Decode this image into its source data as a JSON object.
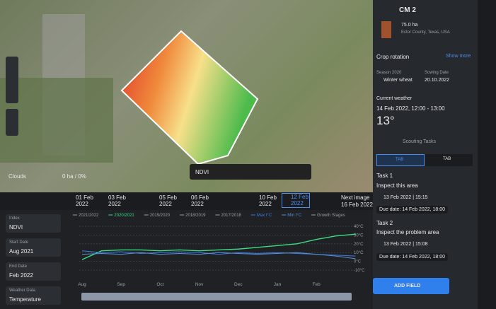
{
  "map": {
    "clouds": "Clouds",
    "clouds_value": "0 ha / 0%",
    "index": "NDVI"
  },
  "timeline": {
    "dates": [
      "01 Feb 2022",
      "03 Feb 2022",
      "05 Feb 2022",
      "06 Feb 2022",
      "10 Feb 2022",
      "12 Feb 2022"
    ],
    "next_label": "Next image",
    "next_date": "16 Feb 2022"
  },
  "controls": [
    {
      "label": "Index",
      "value": "NDVI"
    },
    {
      "label": "Start Date",
      "value": "Aug 2021"
    },
    {
      "label": "End Date",
      "value": "Feb 2022"
    },
    {
      "label": "Weather Data",
      "value": "Temperature"
    }
  ],
  "panel": {
    "title": "CM 2",
    "area": "75.0 ha",
    "location": "Ector County, Texas, USA",
    "crop_rotation": "Crop rotation",
    "show_more": "Show more",
    "season": "Season 2020",
    "crop": "Winter wheat",
    "sowing_label": "Sowing Date",
    "sowing_date": "20.10.2022",
    "weather_title": "Current weather",
    "weather_time": "14 Feb 2022, 12:00 - 13:00",
    "temperature": "13°",
    "scouting": "Scouting Tasks",
    "tabs": [
      "TAB",
      "TAB"
    ],
    "tasks": [
      {
        "title": "Task 1",
        "desc": "Inspect this area",
        "time": "13 Feb 2022 | 15:15",
        "due": "Due date: 14 Feb 2022, 18:00"
      },
      {
        "title": "Task 2",
        "desc": "Inspect the problem area",
        "time": "13 Feb 2022 | 15:08",
        "due": "Due date: 14 Feb 2022, 18:00"
      }
    ],
    "add_field": "ADD FIELD"
  },
  "chart_data": {
    "type": "line",
    "categories": [
      "Aug",
      null,
      "Sep",
      null,
      "Oct",
      null,
      "Nov",
      null,
      "Dec",
      null,
      "Jan",
      null,
      "Feb",
      null,
      null
    ],
    "series": [
      {
        "name": "2020/2021",
        "color": "#3ddc84",
        "values": [
          2,
          12,
          13,
          13,
          12,
          13,
          12,
          13,
          14,
          16,
          18,
          20,
          25,
          29,
          31
        ]
      },
      {
        "name": "Max t°C",
        "color": "#3d7be0",
        "values": [
          12,
          10,
          11,
          9,
          10,
          11,
          10,
          8,
          10,
          9,
          10,
          9,
          8,
          7,
          6
        ]
      },
      {
        "name": "Min t°C",
        "color": "#5a8fd8",
        "values": [
          8,
          9,
          8,
          10,
          8,
          9,
          8,
          10,
          9,
          8,
          9,
          10,
          8,
          6,
          3
        ]
      }
    ],
    "legend_items": [
      "2021/2022",
      "2019/2020",
      "2018/2019",
      "2017/2018",
      "Growth Stages"
    ],
    "ylim": [
      -10,
      40
    ],
    "yticks": [
      {
        "value": 40,
        "label": "40°C"
      },
      {
        "value": 30,
        "label": "30°C"
      },
      {
        "value": 20,
        "label": "20°C"
      },
      {
        "value": 10,
        "label": "10°C"
      },
      {
        "value": 0,
        "label": "0°C"
      },
      {
        "value": -10,
        "label": "-10°C"
      }
    ],
    "grid": true
  }
}
